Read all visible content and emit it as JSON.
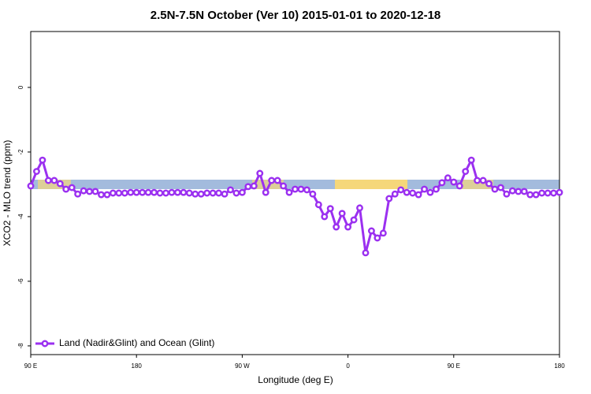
{
  "chart_data": {
    "type": "line",
    "title": "2.5N-7.5N October (Ver 10)   2015-01-01 to 2020-12-18",
    "xlabel": "Longitude (deg E)",
    "ylabel": "XCO2 - MLO trend (ppm)",
    "xlim": [
      90,
      540
    ],
    "ylim": [
      -8.27,
      1.73
    ],
    "xticks": [
      {
        "value": 90,
        "label": "90 E"
      },
      180,
      {
        "value": 270,
        "label": "90 W"
      },
      {
        "value": 360,
        "label": "0"
      },
      {
        "value": 450,
        "label": "90 E"
      },
      {
        "value": 540,
        "label": "180"
      }
    ],
    "yticks": [
      0,
      -2,
      -4,
      -6,
      -8
    ],
    "legend": "bottomleft",
    "x": [
      90,
      95,
      100,
      105,
      110,
      115,
      120,
      125,
      130,
      135,
      140,
      145,
      150,
      155,
      160,
      165,
      170,
      175,
      180,
      185,
      190,
      195,
      200,
      205,
      210,
      215,
      220,
      225,
      230,
      235,
      240,
      245,
      250,
      255,
      260,
      265,
      270,
      275,
      280,
      285,
      290,
      295,
      300,
      305,
      310,
      315,
      320,
      325,
      330,
      335,
      340,
      345,
      350,
      355,
      360,
      365,
      370,
      375,
      380,
      385,
      390,
      395,
      400,
      405,
      410,
      415,
      420,
      425,
      430,
      435,
      440,
      445,
      450,
      455,
      460,
      465,
      470,
      475,
      480,
      485,
      490,
      495,
      500,
      505,
      510,
      515,
      520,
      525,
      530,
      535,
      540
    ],
    "series": [
      {
        "name": "Land (Nadir&Glint) and Ocean (Glint)",
        "color": "#9b30f0",
        "values": [
          -3.05,
          -2.6,
          -2.25,
          -2.88,
          -2.88,
          -2.98,
          -3.15,
          -3.1,
          -3.3,
          -3.2,
          -3.22,
          -3.22,
          -3.32,
          -3.32,
          -3.27,
          -3.27,
          -3.27,
          -3.25,
          -3.25,
          -3.25,
          -3.25,
          -3.25,
          -3.27,
          -3.27,
          -3.25,
          -3.25,
          -3.25,
          -3.27,
          -3.3,
          -3.3,
          -3.27,
          -3.27,
          -3.27,
          -3.3,
          -3.17,
          -3.27,
          -3.25,
          -3.07,
          -3.05,
          -2.66,
          -3.25,
          -2.88,
          -2.88,
          -3.05,
          -3.25,
          -3.15,
          -3.15,
          -3.17,
          -3.3,
          -3.63,
          -4.0,
          -3.75,
          -4.32,
          -3.9,
          -4.32,
          -4.1,
          -3.73,
          -5.12,
          -4.44,
          -4.66,
          -4.51,
          -3.44,
          -3.3,
          -3.17,
          -3.25,
          -3.27,
          -3.32,
          -3.15,
          -3.25,
          -3.15,
          -2.95,
          -2.8,
          -2.93,
          -3.05,
          -2.6,
          -2.25,
          -2.88,
          -2.88,
          -2.98,
          -3.15,
          -3.1,
          -3.3,
          -3.2,
          -3.22,
          -3.22,
          -3.32,
          -3.32,
          -3.27,
          -3.27,
          -3.27,
          -3.25
        ]
      }
    ]
  }
}
